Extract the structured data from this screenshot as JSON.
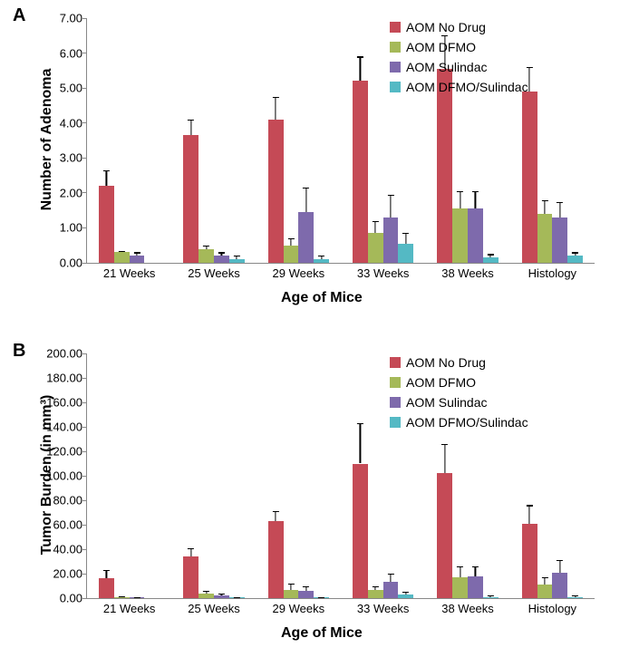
{
  "colors": {
    "series1": "#c54a56",
    "series2": "#a5b959",
    "series3": "#7e6aac",
    "series4": "#54b9c4",
    "axis": "#888888",
    "text": "#000000",
    "background": "#ffffff"
  },
  "fontsize": {
    "panel_label": 20,
    "axis_label": 16,
    "tick": 13,
    "legend": 14
  },
  "categories": [
    "21 Weeks",
    "25 Weeks",
    "29 Weeks",
    "33 Weeks",
    "38 Weeks",
    "Histology"
  ],
  "legend_labels": [
    "AOM No Drug",
    "AOM DFMO",
    "AOM Sulindac",
    "AOM DFMO/Sulindac"
  ],
  "panelA": {
    "label": "A",
    "ylabel": "Number of Adenoma",
    "xlabel": "Age of Mice",
    "ylim": [
      0.0,
      7.0
    ],
    "ytick_step": 1.0,
    "yticks": [
      "0.00",
      "1.00",
      "2.00",
      "3.00",
      "4.00",
      "5.00",
      "6.00",
      "7.00"
    ],
    "bar_width_ratio": 0.18,
    "series": [
      {
        "color_key": "series1",
        "values": [
          2.2,
          3.65,
          4.1,
          5.2,
          5.55,
          4.9
        ],
        "errors": [
          0.45,
          0.45,
          0.65,
          0.7,
          0.95,
          0.7
        ]
      },
      {
        "color_key": "series2",
        "values": [
          0.3,
          0.4,
          0.5,
          0.85,
          1.55,
          1.4
        ],
        "errors": [
          0.05,
          0.1,
          0.2,
          0.35,
          0.5,
          0.4
        ]
      },
      {
        "color_key": "series3",
        "values": [
          0.2,
          0.2,
          1.45,
          1.3,
          1.55,
          1.3
        ],
        "errors": [
          0.1,
          0.1,
          0.7,
          0.65,
          0.5,
          0.45
        ]
      },
      {
        "color_key": "series4",
        "values": [
          0.0,
          0.1,
          0.1,
          0.55,
          0.15,
          0.2
        ],
        "errors": [
          0.0,
          0.1,
          0.1,
          0.3,
          0.1,
          0.1
        ]
      }
    ]
  },
  "panelB": {
    "label": "B",
    "ylabel": "Tumor Burden (in mm³)",
    "xlabel": "Age of Mice",
    "ylim": [
      0.0,
      200.0
    ],
    "ytick_step": 20.0,
    "yticks": [
      "0.00",
      "20.00",
      "40.00",
      "60.00",
      "80.00",
      "100.00",
      "120.00",
      "140.00",
      "160.00",
      "180.00",
      "200.00"
    ],
    "bar_width_ratio": 0.18,
    "series": [
      {
        "color_key": "series1",
        "values": [
          16,
          34,
          63,
          110,
          102,
          61
        ],
        "errors": [
          7,
          7,
          8,
          33,
          24,
          15
        ]
      },
      {
        "color_key": "series2",
        "values": [
          1,
          4,
          7,
          7,
          17,
          11
        ],
        "errors": [
          0.5,
          2,
          5,
          3,
          9,
          6
        ]
      },
      {
        "color_key": "series3",
        "values": [
          0.5,
          2,
          6,
          13,
          18,
          21
        ],
        "errors": [
          0.5,
          2,
          4,
          7,
          8,
          10
        ]
      },
      {
        "color_key": "series4",
        "values": [
          0,
          0.5,
          0.5,
          3,
          1,
          1
        ],
        "errors": [
          0,
          0.5,
          0.5,
          2,
          1,
          1
        ]
      }
    ]
  }
}
